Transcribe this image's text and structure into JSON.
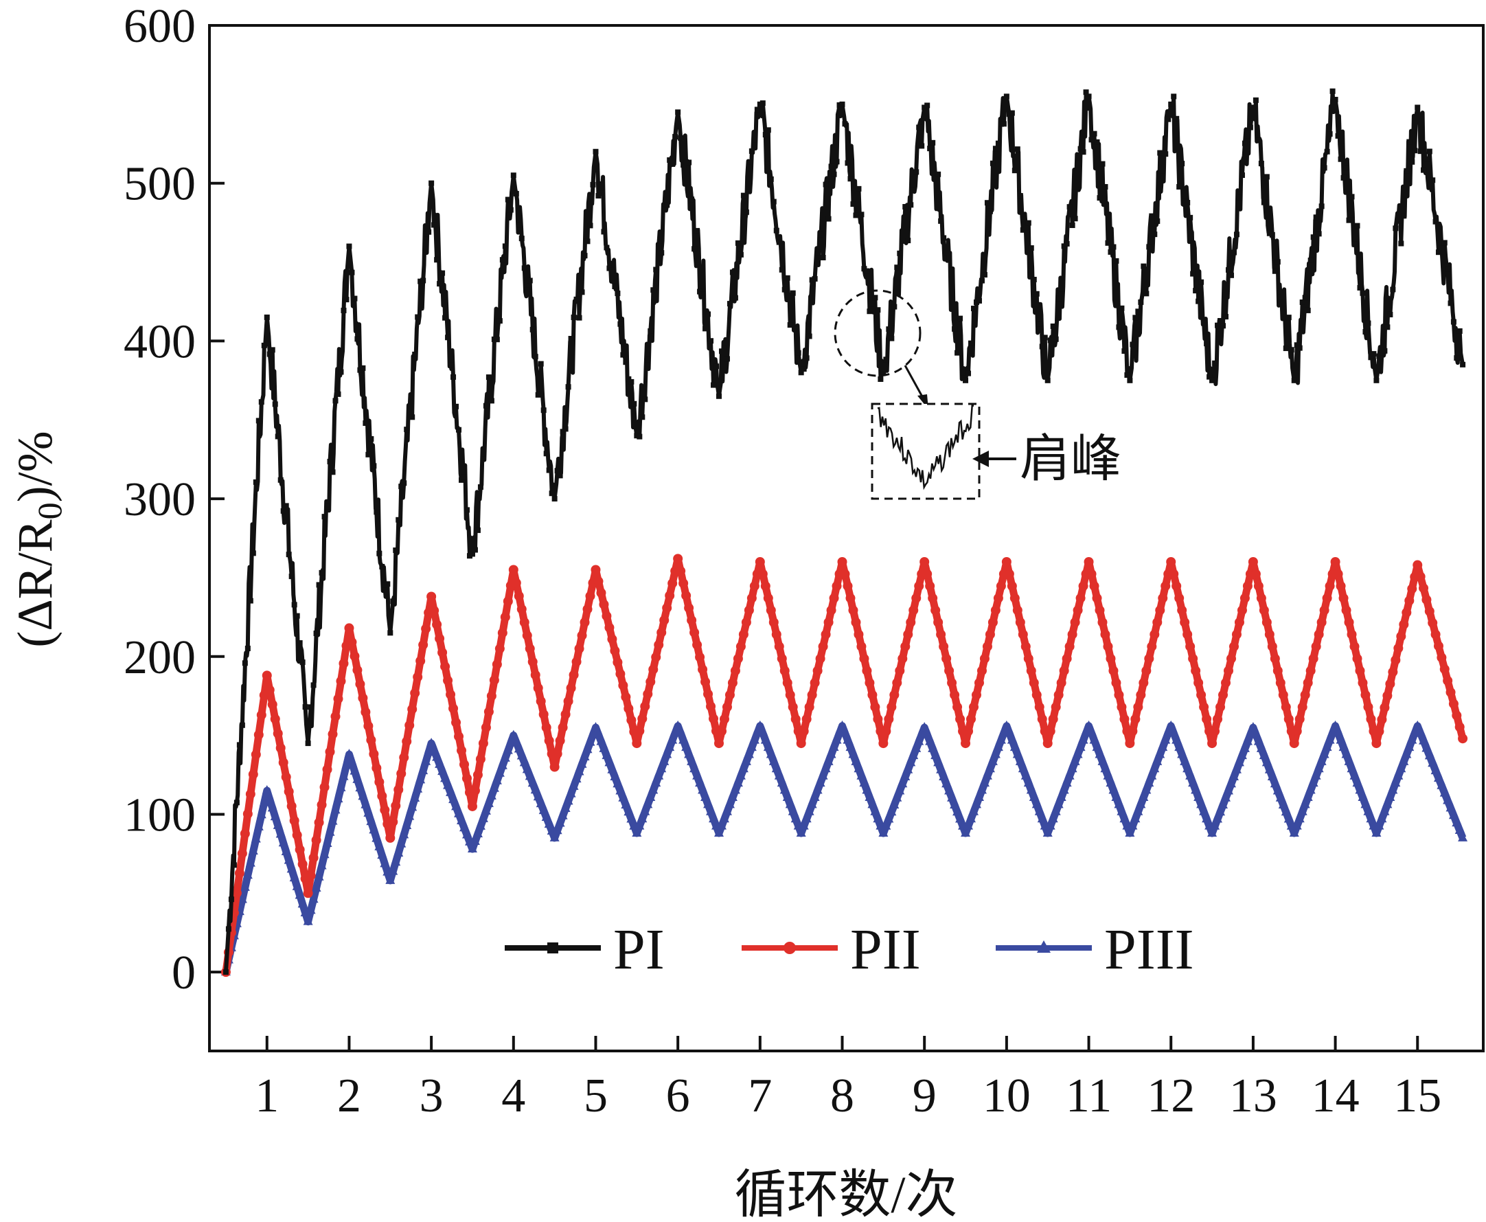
{
  "chart_data": {
    "type": "line",
    "title": "",
    "xlabel": "循环数/次",
    "ylabel_parts": {
      "open": "(ΔR/R",
      "sub": "0",
      "close": ")/%"
    },
    "ylabel": "(ΔR/R0)/%",
    "xlim": [
      0.3,
      15.8
    ],
    "ylim": [
      -50,
      600
    ],
    "xticks": [
      1,
      2,
      3,
      4,
      5,
      6,
      7,
      8,
      9,
      10,
      11,
      12,
      13,
      14,
      15
    ],
    "yticks": [
      0,
      100,
      200,
      300,
      400,
      500,
      600
    ],
    "legend_position": "lower-center",
    "annotation": {
      "text": "肩峰",
      "note": "inset of shoulder peak near cycle 9"
    },
    "series": [
      {
        "name": "PI",
        "color": "#111111",
        "marker": "square",
        "start": {
          "x": 0.5,
          "y": 0
        },
        "peaks": [
          415,
          460,
          500,
          505,
          520,
          545,
          550,
          550,
          548,
          555,
          555,
          550,
          548,
          553,
          548
        ],
        "troughs": [
          145,
          215,
          265,
          300,
          340,
          365,
          380,
          380,
          375,
          375,
          375,
          375,
          375,
          375,
          375
        ],
        "end_y": 385,
        "noise": 18
      },
      {
        "name": "PII",
        "color": "#e0302a",
        "marker": "circle",
        "start": {
          "x": 0.5,
          "y": 0
        },
        "peaks": [
          188,
          218,
          238,
          255,
          255,
          262,
          260,
          260,
          260,
          260,
          260,
          260,
          260,
          260,
          258
        ],
        "troughs": [
          50,
          85,
          105,
          130,
          145,
          145,
          145,
          145,
          145,
          145,
          145,
          145,
          145,
          145,
          145
        ],
        "end_y": 148,
        "noise": 0
      },
      {
        "name": "PIII",
        "color": "#3a4aa0",
        "marker": "triangle",
        "start": {
          "x": 0.5,
          "y": 0
        },
        "peaks": [
          115,
          138,
          145,
          150,
          155,
          156,
          156,
          156,
          155,
          156,
          156,
          156,
          155,
          156,
          156
        ],
        "troughs": [
          32,
          58,
          78,
          85,
          88,
          88,
          88,
          88,
          88,
          88,
          88,
          88,
          88,
          88,
          88
        ],
        "end_y": 85,
        "noise": 0
      }
    ]
  }
}
